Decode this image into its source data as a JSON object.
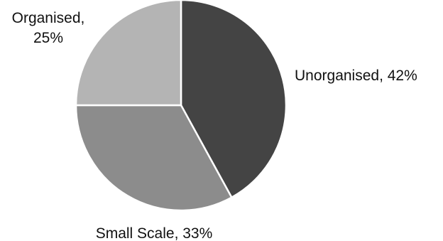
{
  "chart_data": {
    "type": "pie",
    "title": "",
    "slices": [
      {
        "label": "Unorganised, 42%",
        "name": "Unorganised",
        "value": 42,
        "color": "#444444"
      },
      {
        "label": "Small Scale, 33%",
        "name": "Small Scale",
        "value": 33,
        "color": "#8c8c8c"
      },
      {
        "label": [
          "Organised,",
          "25%"
        ],
        "name": "Organised",
        "value": 25,
        "color": "#b4b4b4"
      }
    ],
    "start_angle_deg": 0,
    "direction": "clockwise"
  }
}
